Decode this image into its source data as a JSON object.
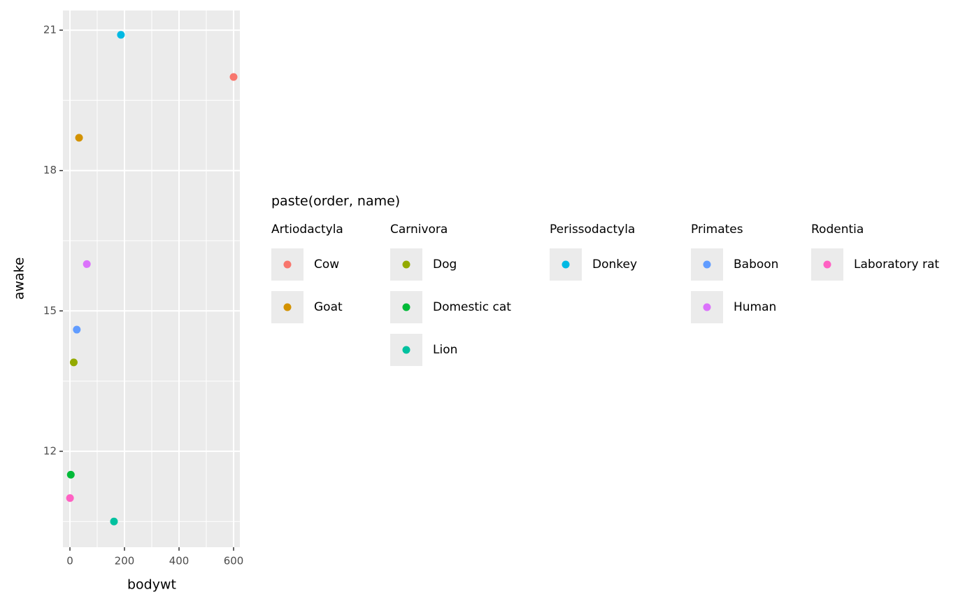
{
  "chart_data": {
    "type": "scatter",
    "x_label": "bodywt",
    "y_label": "awake",
    "xlim": [
      -25.6,
      623
    ],
    "ylim": [
      9.95,
      21.42
    ],
    "xticks": [
      0,
      200,
      400,
      600
    ],
    "yticks": [
      12,
      15,
      18,
      21
    ],
    "grid": true,
    "legend_title": "paste(order, name)",
    "legend_groups": [
      {
        "name": "Artiodactyla",
        "series": [
          {
            "name": "Cow",
            "color": "#F8766D",
            "x": [
              600
            ],
            "values": [
              20
            ]
          },
          {
            "name": "Goat",
            "color": "#D39200",
            "x": [
              33.5
            ],
            "values": [
              18.7
            ]
          }
        ]
      },
      {
        "name": "Carnivora",
        "series": [
          {
            "name": "Dog",
            "color": "#93AA00",
            "x": [
              14
            ],
            "values": [
              13.9
            ]
          },
          {
            "name": "Domestic cat",
            "color": "#00BA38",
            "x": [
              3.3
            ],
            "values": [
              11.5
            ]
          },
          {
            "name": "Lion",
            "color": "#00C19F",
            "x": [
              161.5
            ],
            "values": [
              10.5
            ]
          }
        ]
      },
      {
        "name": "Perissodactyla",
        "series": [
          {
            "name": "Donkey",
            "color": "#00B9E3",
            "x": [
              187
            ],
            "values": [
              20.9
            ]
          }
        ]
      },
      {
        "name": "Primates",
        "series": [
          {
            "name": "Baboon",
            "color": "#619CFF",
            "x": [
              25.2
            ],
            "values": [
              14.6
            ]
          },
          {
            "name": "Human",
            "color": "#DB72FB",
            "x": [
              62
            ],
            "values": [
              16
            ]
          }
        ]
      },
      {
        "name": "Rodentia",
        "series": [
          {
            "name": "Laboratory rat",
            "color": "#FF61C3",
            "x": [
              0.32
            ],
            "values": [
              11
            ]
          }
        ]
      }
    ]
  }
}
